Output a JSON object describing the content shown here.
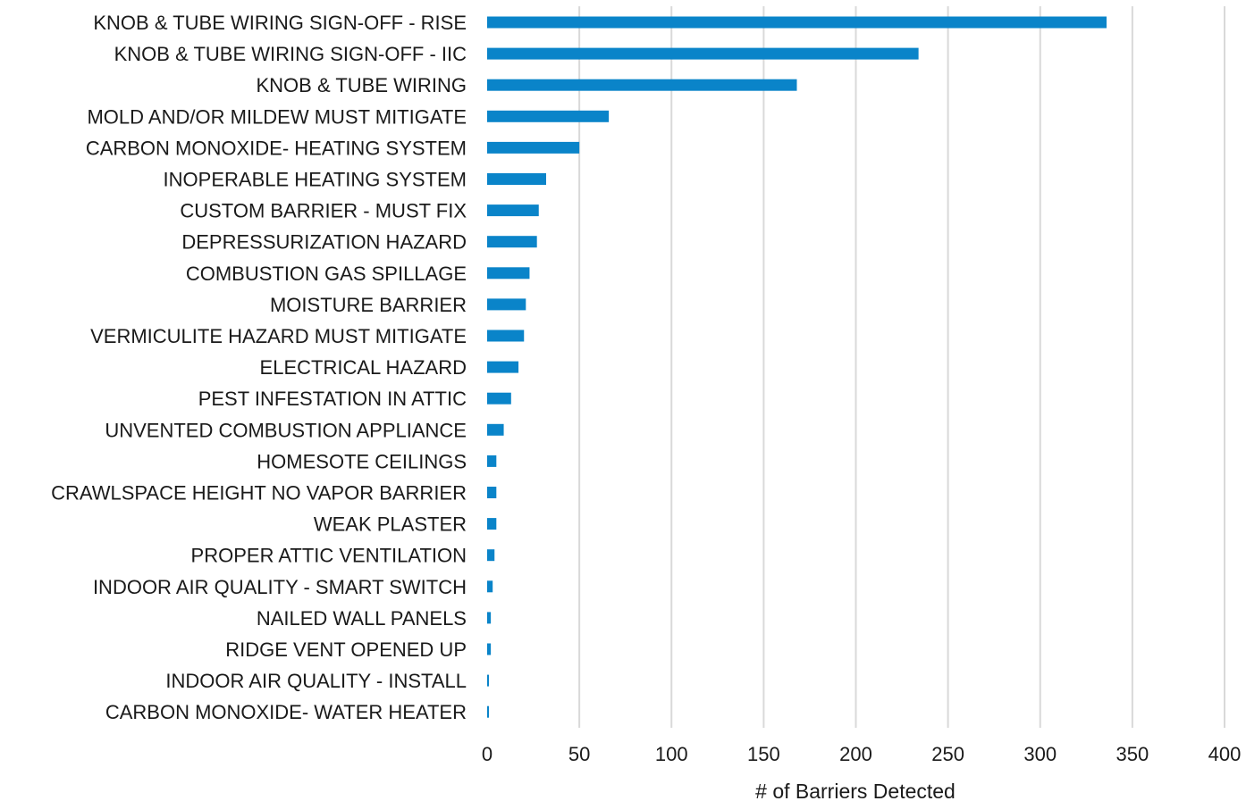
{
  "chart_data": {
    "type": "bar",
    "orientation": "horizontal",
    "title": "",
    "xlabel": "# of Barriers Detected",
    "ylabel": "",
    "xlim": [
      0,
      400
    ],
    "xticks": [
      0,
      50,
      100,
      150,
      200,
      250,
      300,
      350,
      400
    ],
    "grid": true,
    "legend": "none",
    "bar_color": "#0a84c9",
    "categories": [
      "KNOB & TUBE WIRING SIGN-OFF - RISE",
      "KNOB & TUBE WIRING SIGN-OFF - IIC",
      "KNOB & TUBE WIRING",
      "MOLD AND/OR MILDEW MUST MITIGATE",
      "CARBON MONOXIDE- HEATING SYSTEM",
      "INOPERABLE HEATING SYSTEM",
      "CUSTOM BARRIER - MUST FIX",
      "DEPRESSURIZATION HAZARD",
      "COMBUSTION GAS SPILLAGE",
      "MOISTURE BARRIER",
      "VERMICULITE HAZARD MUST MITIGATE",
      "ELECTRICAL HAZARD",
      "PEST INFESTATION IN ATTIC",
      "UNVENTED COMBUSTION APPLIANCE",
      "HOMESOTE CEILINGS",
      "CRAWLSPACE HEIGHT NO VAPOR BARRIER",
      "WEAK PLASTER",
      "PROPER ATTIC VENTILATION",
      "INDOOR AIR QUALITY - SMART SWITCH",
      "NAILED WALL PANELS",
      "RIDGE VENT OPENED UP",
      "INDOOR AIR QUALITY - INSTALL",
      "CARBON MONOXIDE- WATER HEATER"
    ],
    "values": [
      336,
      234,
      168,
      66,
      50,
      32,
      28,
      27,
      23,
      21,
      20,
      17,
      13,
      9,
      5,
      5,
      5,
      4,
      3,
      2,
      2,
      1,
      1
    ]
  }
}
